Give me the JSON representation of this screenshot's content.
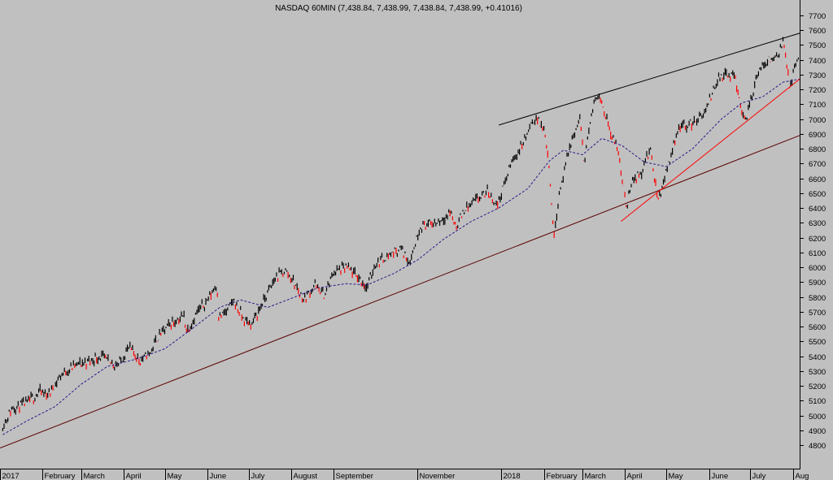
{
  "chart_data": {
    "type": "candlestick",
    "title": "NASDAQ 60MIN (7,438.84, 7,438.99, 7,438.84, 7,438.99, +0.41016)",
    "ylim": [
      4700,
      7800
    ],
    "y_ticks": [
      4800,
      4900,
      5000,
      5100,
      5200,
      5300,
      5400,
      5500,
      5600,
      5700,
      5800,
      5900,
      6000,
      6100,
      6200,
      6300,
      6400,
      6500,
      6600,
      6700,
      6800,
      6900,
      7000,
      7100,
      7200,
      7300,
      7400,
      7500,
      7600,
      7700
    ],
    "y_tick_labels": [
      "4800",
      "4900",
      "5000",
      "5100",
      "5200",
      "5300",
      "5400",
      "5500",
      "5600",
      "5700",
      "5800",
      "5900",
      "6000",
      "6100",
      "6200",
      "6300",
      "6400",
      "6500",
      "6600",
      "6700",
      "6800",
      "6900",
      "7000",
      "7100",
      "7200",
      "7300",
      "7400",
      "7500",
      "7600",
      "7700"
    ],
    "x_range": [
      "2017-01-01",
      "2018-08-06"
    ],
    "x_ticks": [
      {
        "date": "2017-01-01",
        "label": "2017"
      },
      {
        "date": "2017-02-01",
        "label": "February"
      },
      {
        "date": "2017-03-01",
        "label": "March"
      },
      {
        "date": "2017-04-01",
        "label": "April"
      },
      {
        "date": "2017-05-01",
        "label": "May"
      },
      {
        "date": "2017-06-01",
        "label": "June"
      },
      {
        "date": "2017-07-01",
        "label": "July"
      },
      {
        "date": "2017-08-01",
        "label": "August"
      },
      {
        "date": "2017-09-01",
        "label": "September"
      },
      {
        "date": "2017-11-01",
        "label": "November"
      },
      {
        "date": "2018-01-01",
        "label": "2018"
      },
      {
        "date": "2018-02-01",
        "label": "February"
      },
      {
        "date": "2018-03-01",
        "label": "March"
      },
      {
        "date": "2018-04-01",
        "label": "April"
      },
      {
        "date": "2018-05-01",
        "label": "May"
      },
      {
        "date": "2018-06-01",
        "label": "June"
      },
      {
        "date": "2018-07-01",
        "label": "July"
      },
      {
        "date": "2018-08-01",
        "label": "Aug"
      }
    ],
    "series": [
      {
        "style": "price",
        "color": "#000000",
        "down_color": "#ff0000",
        "points": [
          [
            "2017-01-03",
            4930
          ],
          [
            "2017-01-10",
            5050
          ],
          [
            "2017-01-20",
            5080
          ],
          [
            "2017-01-30",
            5160
          ],
          [
            "2017-02-05",
            5140
          ],
          [
            "2017-02-15",
            5280
          ],
          [
            "2017-02-25",
            5340
          ],
          [
            "2017-03-05",
            5360
          ],
          [
            "2017-03-15",
            5400
          ],
          [
            "2017-03-20",
            5370
          ],
          [
            "2017-03-28",
            5340
          ],
          [
            "2017-04-05",
            5460
          ],
          [
            "2017-04-13",
            5370
          ],
          [
            "2017-04-20",
            5420
          ],
          [
            "2017-04-26",
            5530
          ],
          [
            "2017-05-05",
            5620
          ],
          [
            "2017-05-15",
            5670
          ],
          [
            "2017-05-17",
            5570
          ],
          [
            "2017-05-25",
            5700
          ],
          [
            "2017-06-01",
            5780
          ],
          [
            "2017-06-08",
            5890
          ],
          [
            "2017-06-09",
            5660
          ],
          [
            "2017-06-15",
            5700
          ],
          [
            "2017-06-20",
            5780
          ],
          [
            "2017-06-27",
            5650
          ],
          [
            "2017-07-03",
            5610
          ],
          [
            "2017-07-10",
            5740
          ],
          [
            "2017-07-20",
            5920
          ],
          [
            "2017-07-27",
            5980
          ],
          [
            "2017-08-01",
            5930
          ],
          [
            "2017-08-10",
            5780
          ],
          [
            "2017-08-18",
            5880
          ],
          [
            "2017-08-25",
            5810
          ],
          [
            "2017-09-01",
            5970
          ],
          [
            "2017-09-10",
            6000
          ],
          [
            "2017-09-20",
            5920
          ],
          [
            "2017-09-25",
            5860
          ],
          [
            "2017-10-01",
            6020
          ],
          [
            "2017-10-10",
            6080
          ],
          [
            "2017-10-20",
            6130
          ],
          [
            "2017-10-26",
            6030
          ],
          [
            "2017-11-03",
            6280
          ],
          [
            "2017-11-15",
            6300
          ],
          [
            "2017-11-25",
            6370
          ],
          [
            "2017-11-29",
            6270
          ],
          [
            "2017-12-05",
            6390
          ],
          [
            "2017-12-15",
            6460
          ],
          [
            "2017-12-22",
            6510
          ],
          [
            "2017-12-29",
            6420
          ],
          [
            "2018-01-08",
            6700
          ],
          [
            "2018-01-16",
            6830
          ],
          [
            "2018-01-26",
            7020
          ],
          [
            "2018-02-02",
            6900
          ],
          [
            "2018-02-05",
            6650
          ],
          [
            "2018-02-08",
            6200
          ],
          [
            "2018-02-12",
            6500
          ],
          [
            "2018-02-20",
            6820
          ],
          [
            "2018-02-27",
            7000
          ],
          [
            "2018-03-02",
            6720
          ],
          [
            "2018-03-09",
            7100
          ],
          [
            "2018-03-13",
            7180
          ],
          [
            "2018-03-16",
            7080
          ],
          [
            "2018-03-22",
            6900
          ],
          [
            "2018-03-27",
            6780
          ],
          [
            "2018-04-02",
            6400
          ],
          [
            "2018-04-06",
            6600
          ],
          [
            "2018-04-12",
            6620
          ],
          [
            "2018-04-19",
            6800
          ],
          [
            "2018-04-25",
            6450
          ],
          [
            "2018-05-01",
            6650
          ],
          [
            "2018-05-10",
            6950
          ],
          [
            "2018-05-20",
            6970
          ],
          [
            "2018-05-30",
            7050
          ],
          [
            "2018-06-06",
            7250
          ],
          [
            "2018-06-12",
            7300
          ],
          [
            "2018-06-20",
            7280
          ],
          [
            "2018-06-25",
            7050
          ],
          [
            "2018-06-28",
            7000
          ],
          [
            "2018-07-05",
            7260
          ],
          [
            "2018-07-12",
            7390
          ],
          [
            "2018-07-20",
            7420
          ],
          [
            "2018-07-25",
            7530
          ],
          [
            "2018-07-30",
            7200
          ],
          [
            "2018-08-02",
            7330
          ],
          [
            "2018-08-06",
            7440
          ]
        ]
      },
      {
        "style": "moving-average",
        "color": "#2a1a8a",
        "points": [
          [
            "2017-01-03",
            4870
          ],
          [
            "2017-01-20",
            4960
          ],
          [
            "2017-02-10",
            5060
          ],
          [
            "2017-03-01",
            5210
          ],
          [
            "2017-03-20",
            5330
          ],
          [
            "2017-04-10",
            5380
          ],
          [
            "2017-05-01",
            5450
          ],
          [
            "2017-05-20",
            5580
          ],
          [
            "2017-06-10",
            5730
          ],
          [
            "2017-06-25",
            5780
          ],
          [
            "2017-07-15",
            5730
          ],
          [
            "2017-08-01",
            5790
          ],
          [
            "2017-08-20",
            5860
          ],
          [
            "2017-09-10",
            5890
          ],
          [
            "2017-09-25",
            5880
          ],
          [
            "2017-10-15",
            5960
          ],
          [
            "2017-11-01",
            6050
          ],
          [
            "2017-11-20",
            6190
          ],
          [
            "2017-12-10",
            6310
          ],
          [
            "2017-12-30",
            6400
          ],
          [
            "2018-01-20",
            6530
          ],
          [
            "2018-02-05",
            6720
          ],
          [
            "2018-02-15",
            6790
          ],
          [
            "2018-03-01",
            6760
          ],
          [
            "2018-03-15",
            6870
          ],
          [
            "2018-03-30",
            6820
          ],
          [
            "2018-04-15",
            6710
          ],
          [
            "2018-05-01",
            6680
          ],
          [
            "2018-05-20",
            6800
          ],
          [
            "2018-06-10",
            7000
          ],
          [
            "2018-06-25",
            7110
          ],
          [
            "2018-07-10",
            7150
          ],
          [
            "2018-07-25",
            7250
          ],
          [
            "2018-08-06",
            7270
          ]
        ]
      },
      {
        "style": "trendline",
        "color": "#5a0000",
        "points": [
          [
            "2017-01-01",
            4780
          ],
          [
            "2018-08-06",
            6890
          ]
        ]
      },
      {
        "style": "trendline",
        "color": "#000000",
        "points": [
          [
            "2017-12-30",
            6960
          ],
          [
            "2018-08-06",
            7580
          ]
        ]
      },
      {
        "style": "trendline",
        "color": "#ff0000",
        "points": [
          [
            "2018-03-29",
            6310
          ],
          [
            "2018-08-06",
            7270
          ]
        ]
      }
    ]
  }
}
